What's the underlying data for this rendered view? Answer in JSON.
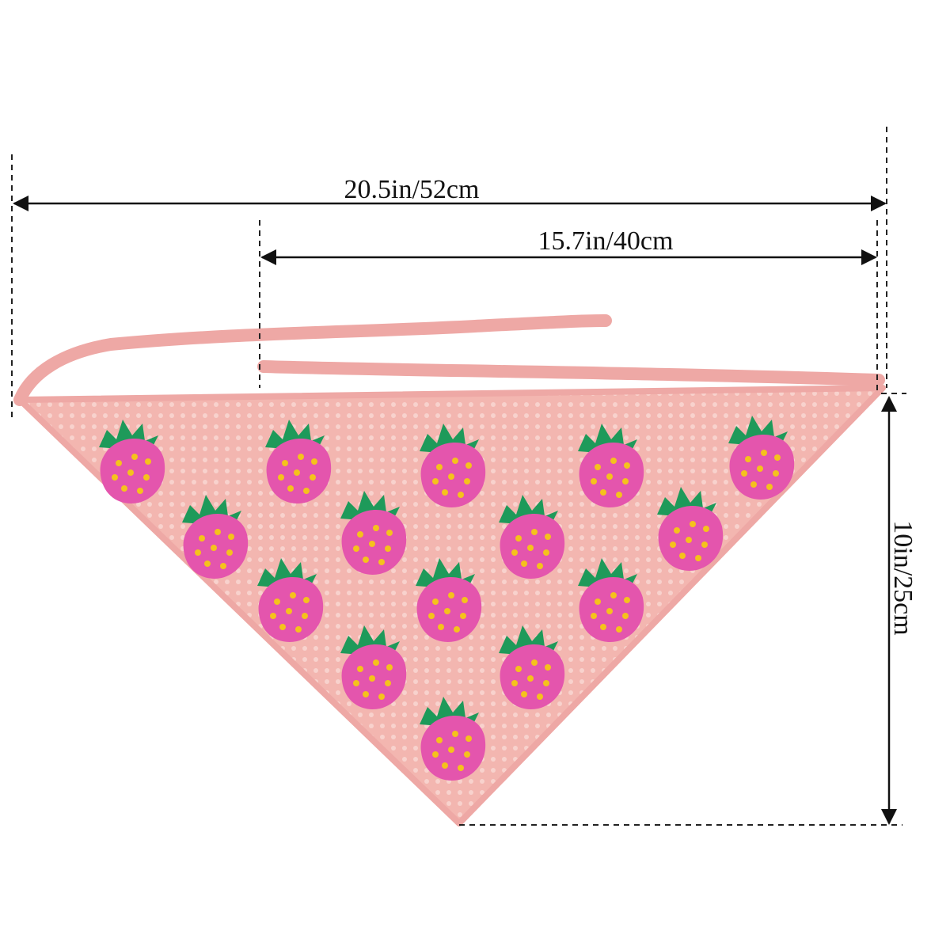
{
  "dimensions": {
    "total_width": "20.5in/52cm",
    "band_width": "15.7in/40cm",
    "height": "10in/25cm"
  }
}
